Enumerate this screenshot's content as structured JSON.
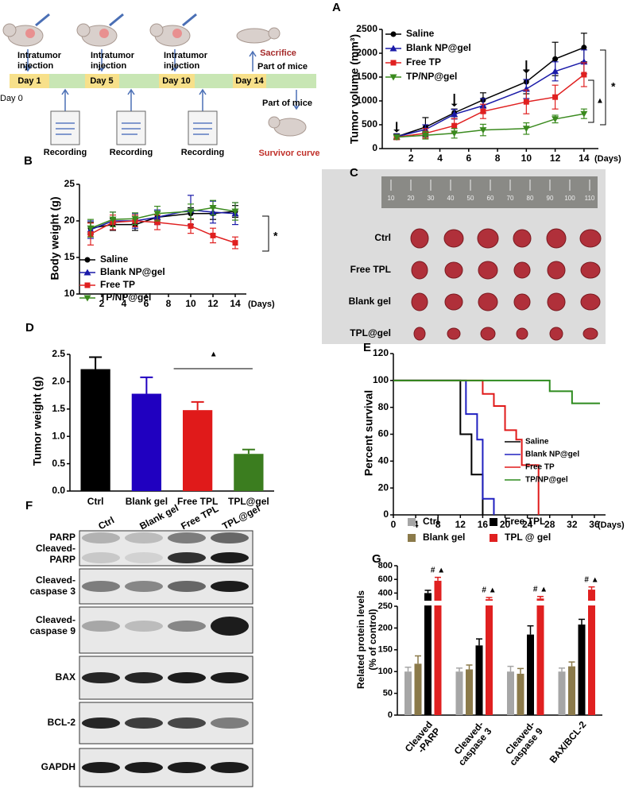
{
  "panel_labels": [
    "A",
    "B",
    "C",
    "D",
    "E",
    "F",
    "G"
  ],
  "schematic": {
    "days": [
      "Day 1",
      "Day 5",
      "Day 10",
      "Day 14"
    ],
    "start": "Day 0",
    "injections": [
      [
        "Intratumor",
        "injection"
      ],
      [
        "Intratumor",
        "injection"
      ],
      [
        "Intratumor",
        "injection"
      ]
    ],
    "recordings": [
      "Recording",
      "Recording",
      "Recording"
    ],
    "sacrifice": "Sacrifice",
    "part_of_mice": [
      "Part of mice",
      "Part of mice"
    ],
    "survivor": "Survivor curve"
  },
  "photo": {
    "ruler": [
      10,
      20,
      30,
      40,
      50,
      60,
      70,
      80,
      90,
      100,
      110
    ],
    "rows": [
      "Ctrl",
      "Free TPL",
      "Blank gel",
      "TPL@gel"
    ]
  },
  "blot": {
    "lanes": [
      "Ctrl",
      "Blank gel",
      "Free TPL",
      "TPL@gel"
    ],
    "bands": [
      [
        "PARP"
      ],
      [
        "Cleaved-",
        "PARP"
      ],
      [
        "Cleaved-",
        "caspase 3"
      ],
      [
        "Cleaved-",
        "caspase 9"
      ],
      [
        "BAX"
      ],
      [
        "BCL-2"
      ],
      [
        "GAPDH"
      ]
    ]
  },
  "chart_data": [
    {
      "type": "line",
      "ylabel": "Tumor volume (mm³)",
      "xlabel": "(Days)",
      "x": [
        1,
        3,
        5,
        7,
        10,
        12,
        14
      ],
      "xlim": [
        0,
        15
      ],
      "xticks": [
        2,
        4,
        6,
        8,
        10,
        12,
        14
      ],
      "ylim": [
        0,
        2500
      ],
      "yticks": [
        0,
        500,
        1000,
        1500,
        2000,
        2500
      ],
      "legend": "upper left",
      "series": [
        {
          "name": "Saline",
          "color": "#000000",
          "marker": "circle",
          "values": [
            250,
            450,
            750,
            1020,
            1400,
            1880,
            2120
          ],
          "errors": [
            60,
            200,
            80,
            150,
            250,
            350,
            300
          ]
        },
        {
          "name": "Blank NP@gel",
          "color": "#1a1aa8",
          "marker": "triangle",
          "values": [
            250,
            400,
            720,
            900,
            1250,
            1620,
            1820
          ],
          "errors": [
            50,
            100,
            100,
            150,
            200,
            200,
            250
          ]
        },
        {
          "name": "Free TP",
          "color": "#e02020",
          "marker": "square",
          "values": [
            240,
            320,
            480,
            780,
            980,
            1080,
            1550
          ],
          "errors": [
            50,
            100,
            150,
            150,
            250,
            250,
            250
          ]
        },
        {
          "name": "TP/NP@gel",
          "color": "#3a8a1e",
          "marker": "triangle-down",
          "values": [
            240,
            280,
            320,
            390,
            420,
            620,
            730
          ],
          "errors": [
            40,
            80,
            100,
            120,
            120,
            80,
            100
          ]
        }
      ],
      "annotations": [
        "*",
        "▲"
      ]
    },
    {
      "type": "line",
      "ylabel": "Body weight (g)",
      "xlabel": "(Days)",
      "x": [
        1,
        3,
        5,
        7,
        10,
        12,
        14
      ],
      "xlim": [
        0,
        15
      ],
      "xticks": [
        2,
        4,
        6,
        8,
        10,
        12,
        14
      ],
      "ylim": [
        10,
        25
      ],
      "yticks": [
        10,
        15,
        20,
        25
      ],
      "legend": "lower left",
      "series": [
        {
          "name": "Saline",
          "color": "#000000",
          "marker": "circle",
          "values": [
            19,
            19.5,
            19.5,
            20.5,
            21,
            21,
            21.3
          ],
          "errors": [
            0.8,
            0.8,
            0.8,
            0.8,
            0.8,
            0.8,
            0.8
          ]
        },
        {
          "name": "Blank NP@gel",
          "color": "#1a1aa8",
          "marker": "triangle",
          "values": [
            18.8,
            20,
            20,
            20.5,
            21.5,
            21.2,
            21
          ],
          "errors": [
            1.2,
            1.2,
            1,
            1,
            2,
            1.5,
            1.5
          ]
        },
        {
          "name": "Free TP",
          "color": "#e02020",
          "marker": "square",
          "values": [
            18.2,
            19.8,
            20,
            19.8,
            19.3,
            18,
            17
          ],
          "errors": [
            1.5,
            1,
            0.8,
            1,
            1,
            1,
            0.8
          ]
        },
        {
          "name": "TP/NP@gel",
          "color": "#3a8a1e",
          "marker": "triangle-down",
          "values": [
            19,
            20.2,
            20.3,
            21,
            21.3,
            21.8,
            21.3
          ],
          "errors": [
            1.2,
            1,
            0.8,
            1,
            1,
            1,
            1.2
          ]
        }
      ],
      "annotations": [
        "*"
      ]
    },
    {
      "type": "bar",
      "ylabel": "Tumor weight (g)",
      "categories": [
        "Ctrl",
        "Blank gel",
        "Free TPL",
        "TPL@gel"
      ],
      "values": [
        2.23,
        1.78,
        1.48,
        0.68
      ],
      "errors": [
        0.22,
        0.3,
        0.15,
        0.08
      ],
      "colors": [
        "#000000",
        "#2000c0",
        "#e01a1a",
        "#3b7d1f"
      ],
      "ylim": [
        0,
        2.5
      ],
      "yticks": [
        {
          "value": 0,
          "label": "0.0"
        },
        0.5,
        {
          "value": 1,
          "label": "1.0"
        },
        1.5,
        {
          "value": 2,
          "label": "2.0"
        },
        2.5
      ],
      "annotations": [
        "▲"
      ]
    },
    {
      "type": "step",
      "ylabel": "Percent survival",
      "xlabel": "(Days)",
      "xlim": [
        0,
        38
      ],
      "xticks": [
        0,
        4,
        8,
        12,
        16,
        20,
        24,
        28,
        32,
        36
      ],
      "ylim": [
        0,
        120
      ],
      "yticks": [
        0,
        20,
        40,
        60,
        80,
        100,
        120
      ],
      "legend": "lower right",
      "series": [
        {
          "name": "Saline",
          "color": "#000000",
          "x": [
            0,
            12,
            12,
            14,
            14,
            16,
            16
          ],
          "values": [
            100,
            100,
            60,
            60,
            30,
            30,
            0
          ]
        },
        {
          "name": "Blank NP@gel",
          "color": "#2020c0",
          "x": [
            0,
            13,
            13,
            15,
            15,
            16,
            16,
            18,
            18
          ],
          "values": [
            100,
            100,
            75,
            75,
            56,
            56,
            12,
            12,
            0
          ]
        },
        {
          "name": "Free TP",
          "color": "#e01a1a",
          "x": [
            0,
            16,
            16,
            18,
            18,
            20,
            20,
            22,
            22,
            23,
            23,
            26,
            26
          ],
          "values": [
            100,
            100,
            90,
            90,
            81,
            81,
            63,
            63,
            56,
            56,
            37,
            37,
            0
          ]
        },
        {
          "name": "TP/NP@gel",
          "color": "#2e8b1e",
          "x": [
            0,
            28,
            28,
            32,
            32,
            37
          ],
          "values": [
            100,
            100,
            92,
            92,
            83,
            83
          ]
        }
      ]
    },
    {
      "type": "grouped-bar",
      "ylabel": [
        "Related protein levels",
        "(% of control)"
      ],
      "categories": [
        [
          "Cleaved",
          "-PARP"
        ],
        [
          "Cleaved-",
          "caspase 3"
        ],
        [
          "Cleaved-",
          "caspase 9"
        ],
        [
          "BAX/BCL-2"
        ]
      ],
      "ylim": [
        0,
        800
      ],
      "ybreak": [
        250,
        300
      ],
      "yticks": [
        0,
        50,
        100,
        150,
        200,
        250,
        400,
        600,
        800
      ],
      "legend": "top",
      "series": [
        {
          "name": "Ctrl",
          "color": "#a6a6a6",
          "values": [
            100,
            100,
            100,
            100
          ],
          "errors": [
            10,
            8,
            12,
            8
          ]
        },
        {
          "name": "Blank gel",
          "color": "#8b7a4a",
          "values": [
            118,
            105,
            95,
            112
          ],
          "errors": [
            18,
            10,
            12,
            10
          ]
        },
        {
          "name": "Free TPL",
          "color": "#000000",
          "values": [
            400,
            160,
            185,
            208
          ],
          "errors": [
            40,
            15,
            20,
            12
          ]
        },
        {
          "name": "TPL @ gel",
          "color": "#e02020",
          "values": [
            580,
            310,
            320,
            450
          ],
          "errors": [
            50,
            25,
            30,
            40
          ]
        }
      ],
      "annotations": [
        "# ▲",
        "# ▲",
        "# ▲",
        "# ▲"
      ]
    }
  ]
}
